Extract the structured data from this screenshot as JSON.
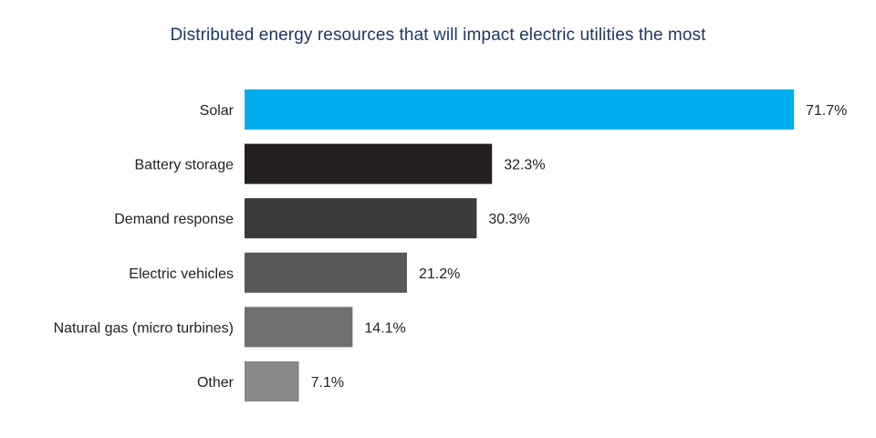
{
  "chart_data": {
    "type": "bar",
    "orientation": "horizontal",
    "title": "Distributed energy resources that will impact electric utilities the most",
    "categories": [
      "Solar",
      "Battery storage",
      "Demand response",
      "Electric vehicles",
      "Natural gas (micro turbines)",
      "Other"
    ],
    "values": [
      71.7,
      32.3,
      30.3,
      21.2,
      14.1,
      7.1
    ],
    "value_labels": [
      "71.7%",
      "32.3%",
      "30.3%",
      "21.2%",
      "14.1%",
      "7.1%"
    ],
    "bar_colors": [
      "#00aeef",
      "#231f20",
      "#3a3a3c",
      "#58585b",
      "#707073",
      "#88888b"
    ],
    "xlim": [
      0,
      71.7
    ],
    "grid": false,
    "legend": "none"
  }
}
